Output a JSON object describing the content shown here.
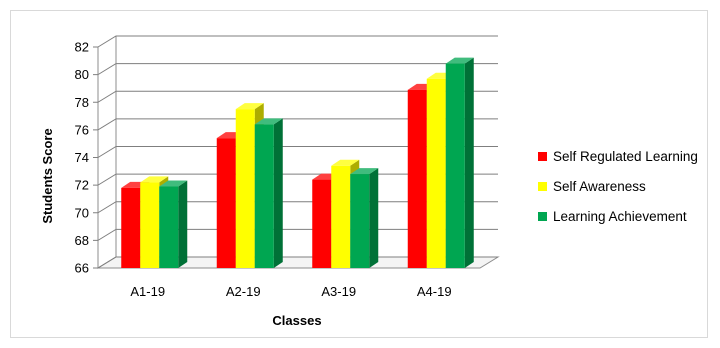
{
  "chart_data": {
    "type": "bar",
    "categories": [
      "A1-19",
      "A2-19",
      "A3-19",
      "A4-19"
    ],
    "series": [
      {
        "name": "Self Regulated Learning",
        "values": [
          71.8,
          75.4,
          72.4,
          78.9
        ],
        "color": "#ff0000"
      },
      {
        "name": "Self Awareness",
        "values": [
          72.2,
          77.5,
          73.4,
          79.7
        ],
        "color": "#ffff00"
      },
      {
        "name": "Learning Achievement",
        "values": [
          71.9,
          76.4,
          72.8,
          80.8
        ],
        "color": "#00a651"
      }
    ],
    "title": "",
    "xlabel": "Classes",
    "ylabel": "Students Score",
    "ylim": [
      66,
      82
    ],
    "yticks": [
      "66",
      "68",
      "70",
      "72",
      "74",
      "76",
      "78",
      "80",
      "82"
    ],
    "grid": true,
    "style": "3d",
    "legend_position": "right"
  }
}
